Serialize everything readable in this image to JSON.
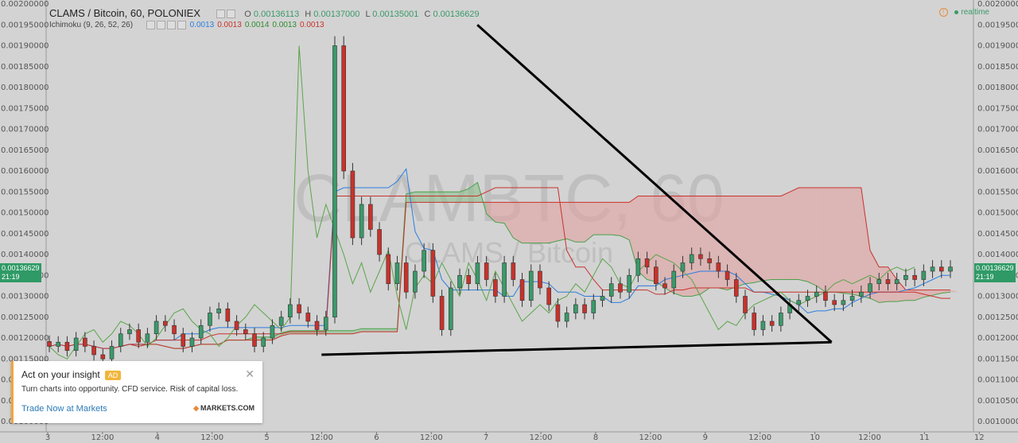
{
  "header": {
    "symbol": "CLAMS / Bitcoin, 60, POLONIEX",
    "o_label": "O",
    "o": "0.00136113",
    "h_label": "H",
    "h": "0.00137000",
    "l_label": "L",
    "l": "0.00135001",
    "c_label": "C",
    "c": "0.00136629"
  },
  "indicator": {
    "label": "Ichimoku (9, 26, 52, 26)",
    "values": [
      "0.0013",
      "0.0013",
      "0.0014",
      "0.0013",
      "0.0013"
    ],
    "colors": [
      "#2b7de0",
      "#c8322b",
      "#2e8b2e",
      "#2e8b2e",
      "#c8322b"
    ]
  },
  "status": {
    "realtime_label": "realtime"
  },
  "watermark": {
    "main": "CLAMBTC, 60",
    "sub": "CLAMS / Bitcoin"
  },
  "price_tag": {
    "value": "0.00136629",
    "countdown": "21:19"
  },
  "colors": {
    "up": "#3a9a6a",
    "down": "#c8322b",
    "tenkan": "#2b7de0",
    "kijun": "#c8322b",
    "chikou": "#5aa54a",
    "cloud_bull": "#8fc08f",
    "cloud_bear": "#e3a2a2"
  },
  "ad": {
    "title": "Act on your insight",
    "badge": "AD",
    "body": "Turn charts into opportunity. CFD service. Risk of capital loss.",
    "cta": "Trade Now at Markets",
    "logo": "MARKETS.COM"
  },
  "chart_data": {
    "type": "candlestick",
    "y_ticks": [
      "0.00200000",
      "0.00195000",
      "0.00190000",
      "0.00185000",
      "0.00180000",
      "0.00175000",
      "0.00170000",
      "0.00165000",
      "0.00160000",
      "0.00155000",
      "0.00150000",
      "0.00145000",
      "0.00140000",
      "0.00135000",
      "0.00130000",
      "0.00125000",
      "0.00120000",
      "0.00115000",
      "0.00110000",
      "0.00105000",
      "0.00100000"
    ],
    "ylim": [
      0.00098,
      0.002
    ],
    "x_ticks": [
      "3",
      "12:00",
      "4",
      "12:00",
      "5",
      "12:00",
      "6",
      "12:00",
      "7",
      "12:00",
      "8",
      "12:00",
      "9",
      "12:00",
      "10",
      "12:00",
      "11",
      "12"
    ],
    "closes": [
      0.00118,
      0.00119,
      0.00117,
      0.0012,
      0.00118,
      0.00116,
      0.00115,
      0.00118,
      0.00121,
      0.00122,
      0.00119,
      0.00121,
      0.00124,
      0.00123,
      0.00121,
      0.00118,
      0.0012,
      0.00123,
      0.00126,
      0.00127,
      0.00124,
      0.00122,
      0.00121,
      0.00118,
      0.0012,
      0.00123,
      0.00125,
      0.00128,
      0.00126,
      0.00124,
      0.00122,
      0.00125,
      0.0019,
      0.0016,
      0.00144,
      0.00152,
      0.00146,
      0.0014,
      0.00133,
      0.00138,
      0.00131,
      0.00136,
      0.00141,
      0.0013,
      0.00122,
      0.00132,
      0.00135,
      0.00133,
      0.00138,
      0.00134,
      0.0013,
      0.00138,
      0.00134,
      0.00129,
      0.00136,
      0.00132,
      0.00128,
      0.00124,
      0.00126,
      0.00128,
      0.00126,
      0.00129,
      0.0013,
      0.00133,
      0.00131,
      0.00135,
      0.00139,
      0.00137,
      0.00133,
      0.00132,
      0.00136,
      0.00138,
      0.0014,
      0.00139,
      0.00138,
      0.00136,
      0.00134,
      0.0013,
      0.00126,
      0.00122,
      0.00124,
      0.00123,
      0.00126,
      0.00128,
      0.00129,
      0.0013,
      0.00131,
      0.00129,
      0.00128,
      0.00129,
      0.0013,
      0.00131,
      0.00133,
      0.00134,
      0.00133,
      0.00134,
      0.00135,
      0.00134,
      0.00136,
      0.00137,
      0.00136,
      0.00137
    ],
    "trendlines": [
      {
        "from": [
          0.465,
          0.00195
        ],
        "to": [
          0.847,
          0.00119
        ]
      },
      {
        "from": [
          0.297,
          0.00116
        ],
        "to": [
          0.847,
          0.00119
        ]
      }
    ]
  }
}
